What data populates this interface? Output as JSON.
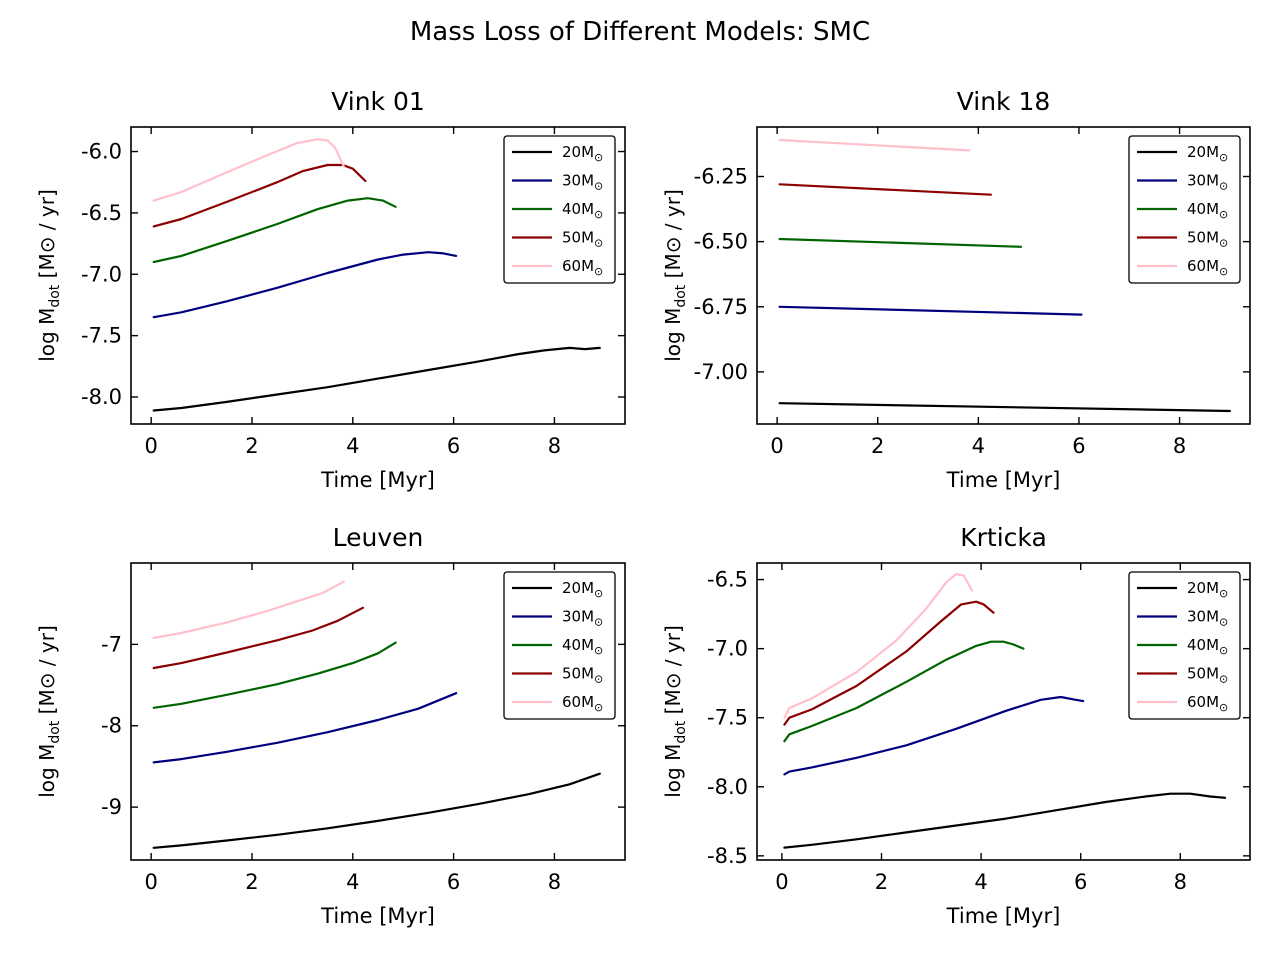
{
  "figure": {
    "suptitle": "Mass Loss of Different Models: SMC"
  },
  "series_meta": [
    {
      "name": "20M⊙",
      "color": "#000000"
    },
    {
      "name": "30M⊙",
      "color": "#00007f"
    },
    {
      "name": "40M⊙",
      "color": "#006400"
    },
    {
      "name": "50M⊙",
      "color": "#8b0000"
    },
    {
      "name": "60M⊙",
      "color": "#ffc0cb"
    }
  ],
  "chart_data": [
    {
      "type": "line",
      "title": "Vink 01",
      "xlabel": "Time [Myr]",
      "ylabel": "log M_dot [M⊙ / yr]",
      "xlim": [
        -0.4,
        9.4
      ],
      "ylim": [
        -8.22,
        -5.8
      ],
      "xticks": [
        0,
        2,
        4,
        6,
        8
      ],
      "yticks": [
        -8.0,
        -7.5,
        -7.0,
        -6.5,
        -6.0
      ],
      "ytick_labels": [
        "-8.0",
        "-7.5",
        "-7.0",
        "-6.5",
        "-6.0"
      ],
      "legend": "top-right",
      "series": [
        {
          "name": "20M⊙",
          "x": [
            0.05,
            0.6,
            1.5,
            2.5,
            3.5,
            4.5,
            5.5,
            6.5,
            7.3,
            7.8,
            8.3,
            8.6,
            8.9
          ],
          "y": [
            -8.11,
            -8.09,
            -8.04,
            -7.98,
            -7.92,
            -7.85,
            -7.78,
            -7.71,
            -7.65,
            -7.62,
            -7.6,
            -7.61,
            -7.6
          ]
        },
        {
          "name": "30M⊙",
          "x": [
            0.05,
            0.6,
            1.5,
            2.5,
            3.5,
            4.5,
            5.0,
            5.5,
            5.8,
            6.05
          ],
          "y": [
            -7.35,
            -7.31,
            -7.22,
            -7.11,
            -6.99,
            -6.88,
            -6.84,
            -6.82,
            -6.83,
            -6.85
          ]
        },
        {
          "name": "40M⊙",
          "x": [
            0.05,
            0.6,
            1.5,
            2.5,
            3.3,
            3.9,
            4.3,
            4.6,
            4.85
          ],
          "y": [
            -6.9,
            -6.85,
            -6.73,
            -6.59,
            -6.47,
            -6.4,
            -6.38,
            -6.4,
            -6.45
          ]
        },
        {
          "name": "50M⊙",
          "x": [
            0.05,
            0.6,
            1.5,
            2.5,
            3.0,
            3.5,
            3.8,
            4.0,
            4.25
          ],
          "y": [
            -6.61,
            -6.55,
            -6.41,
            -6.25,
            -6.16,
            -6.11,
            -6.11,
            -6.14,
            -6.24
          ]
        },
        {
          "name": "60M⊙",
          "x": [
            0.05,
            0.6,
            1.5,
            2.3,
            2.9,
            3.3,
            3.5,
            3.65,
            3.82
          ],
          "y": [
            -6.4,
            -6.33,
            -6.17,
            -6.03,
            -5.93,
            -5.9,
            -5.91,
            -5.97,
            -6.12
          ]
        }
      ]
    },
    {
      "type": "line",
      "title": "Vink 18",
      "xlabel": "Time [Myr]",
      "ylabel": "log M_dot [M⊙ / yr]",
      "xlim": [
        -0.4,
        9.4
      ],
      "ylim": [
        -7.2,
        -6.06
      ],
      "xticks": [
        0,
        2,
        4,
        6,
        8
      ],
      "yticks": [
        -7.0,
        -6.75,
        -6.5,
        -6.25
      ],
      "ytick_labels": [
        "-7.00",
        "-6.75",
        "-6.50",
        "-6.25"
      ],
      "legend": "top-right",
      "series": [
        {
          "name": "20M⊙",
          "x": [
            0.05,
            9.0
          ],
          "y": [
            -7.12,
            -7.15
          ]
        },
        {
          "name": "30M⊙",
          "x": [
            0.05,
            6.05
          ],
          "y": [
            -6.75,
            -6.78
          ]
        },
        {
          "name": "40M⊙",
          "x": [
            0.05,
            4.85
          ],
          "y": [
            -6.49,
            -6.52
          ]
        },
        {
          "name": "50M⊙",
          "x": [
            0.05,
            4.25
          ],
          "y": [
            -6.28,
            -6.32
          ]
        },
        {
          "name": "60M⊙",
          "x": [
            0.05,
            3.82
          ],
          "y": [
            -6.11,
            -6.15
          ]
        }
      ]
    },
    {
      "type": "line",
      "title": "Leuven",
      "xlabel": "Time [Myr]",
      "ylabel": "log M_dot [M⊙ / yr]",
      "xlim": [
        -0.4,
        9.4
      ],
      "ylim": [
        -9.65,
        -6.0
      ],
      "xticks": [
        0,
        2,
        4,
        6,
        8
      ],
      "yticks": [
        -9,
        -8,
        -7
      ],
      "ytick_labels": [
        "-9",
        "-8",
        "-7"
      ],
      "legend": "top-right",
      "series": [
        {
          "name": "20M⊙",
          "x": [
            0.05,
            0.6,
            1.5,
            2.5,
            3.5,
            4.5,
            5.5,
            6.5,
            7.5,
            8.3,
            8.9
          ],
          "y": [
            -9.5,
            -9.47,
            -9.41,
            -9.34,
            -9.26,
            -9.17,
            -9.07,
            -8.96,
            -8.84,
            -8.72,
            -8.59
          ]
        },
        {
          "name": "30M⊙",
          "x": [
            0.05,
            0.6,
            1.5,
            2.5,
            3.5,
            4.5,
            5.3,
            6.05
          ],
          "y": [
            -8.45,
            -8.41,
            -8.32,
            -8.21,
            -8.08,
            -7.93,
            -7.79,
            -7.6
          ]
        },
        {
          "name": "40M⊙",
          "x": [
            0.05,
            0.6,
            1.5,
            2.5,
            3.3,
            4.0,
            4.5,
            4.85
          ],
          "y": [
            -7.78,
            -7.73,
            -7.62,
            -7.49,
            -7.36,
            -7.23,
            -7.11,
            -6.98
          ]
        },
        {
          "name": "50M⊙",
          "x": [
            0.05,
            0.6,
            1.5,
            2.5,
            3.2,
            3.7,
            4.2
          ],
          "y": [
            -7.29,
            -7.23,
            -7.1,
            -6.95,
            -6.83,
            -6.71,
            -6.55
          ]
        },
        {
          "name": "60M⊙",
          "x": [
            0.05,
            0.6,
            1.5,
            2.3,
            2.9,
            3.4,
            3.82
          ],
          "y": [
            -6.92,
            -6.86,
            -6.73,
            -6.59,
            -6.47,
            -6.37,
            -6.23
          ]
        }
      ]
    },
    {
      "type": "line",
      "title": "Krticka",
      "xlabel": "Time [Myr]",
      "ylabel": "log M_dot [M⊙ / yr]",
      "xlim": [
        -0.5,
        9.4
      ],
      "ylim": [
        -8.53,
        -6.38
      ],
      "xticks": [
        0,
        2,
        4,
        6,
        8
      ],
      "yticks": [
        -8.5,
        -8.0,
        -7.5,
        -7.0,
        -6.5
      ],
      "ytick_labels": [
        "-8.5",
        "-8.0",
        "-7.5",
        "-7.0",
        "-6.5"
      ],
      "legend": "top-right",
      "series": [
        {
          "name": "20M⊙",
          "x": [
            0.05,
            0.6,
            1.5,
            2.5,
            3.5,
            4.5,
            5.5,
            6.5,
            7.3,
            7.8,
            8.2,
            8.6,
            8.9
          ],
          "y": [
            -8.44,
            -8.42,
            -8.38,
            -8.33,
            -8.28,
            -8.23,
            -8.17,
            -8.11,
            -8.07,
            -8.05,
            -8.05,
            -8.07,
            -8.08
          ]
        },
        {
          "name": "30M⊙",
          "x": [
            0.05,
            0.15,
            0.6,
            1.5,
            2.5,
            3.5,
            4.5,
            5.2,
            5.6,
            5.9,
            6.05
          ],
          "y": [
            -7.91,
            -7.89,
            -7.86,
            -7.79,
            -7.7,
            -7.58,
            -7.45,
            -7.37,
            -7.35,
            -7.37,
            -7.38
          ]
        },
        {
          "name": "40M⊙",
          "x": [
            0.05,
            0.15,
            0.6,
            1.5,
            2.5,
            3.3,
            3.9,
            4.2,
            4.45,
            4.65,
            4.85
          ],
          "y": [
            -7.67,
            -7.62,
            -7.56,
            -7.43,
            -7.24,
            -7.08,
            -6.98,
            -6.95,
            -6.95,
            -6.97,
            -7.0
          ]
        },
        {
          "name": "50M⊙",
          "x": [
            0.05,
            0.15,
            0.6,
            1.5,
            2.5,
            3.2,
            3.6,
            3.9,
            4.05,
            4.25
          ],
          "y": [
            -7.55,
            -7.5,
            -7.44,
            -7.27,
            -7.02,
            -6.8,
            -6.68,
            -6.66,
            -6.68,
            -6.74
          ]
        },
        {
          "name": "60M⊙",
          "x": [
            0.05,
            0.15,
            0.6,
            1.5,
            2.3,
            2.9,
            3.3,
            3.5,
            3.65,
            3.82
          ],
          "y": [
            -7.5,
            -7.43,
            -7.36,
            -7.17,
            -6.94,
            -6.71,
            -6.52,
            -6.46,
            -6.47,
            -6.58
          ]
        }
      ]
    }
  ]
}
